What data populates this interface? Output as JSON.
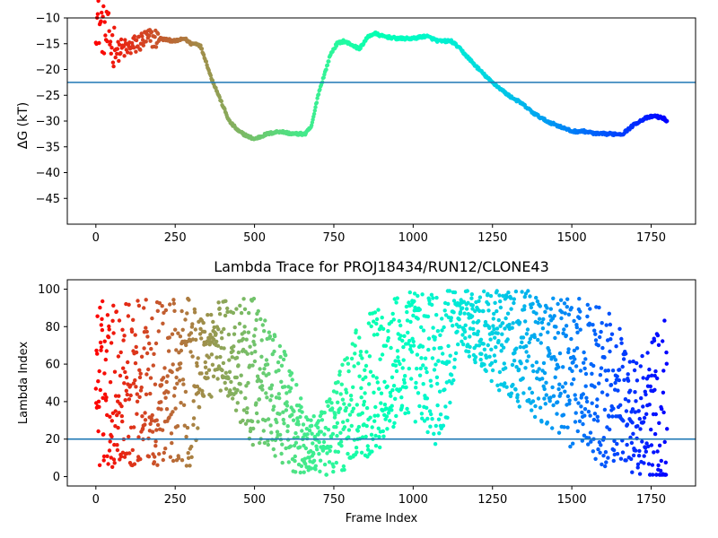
{
  "chart_data": [
    {
      "type": "scatter",
      "title": "",
      "xlabel": "",
      "ylabel": "ΔG (kT)",
      "xlim": [
        -90,
        1890
      ],
      "ylim": [
        -50,
        -10
      ],
      "xticks": [
        0,
        250,
        500,
        750,
        1000,
        1250,
        1500,
        1750
      ],
      "xtick_labels": [
        "0",
        "250",
        "500",
        "750",
        "1000",
        "1250",
        "1500",
        "1750"
      ],
      "yticks": [
        -45,
        -40,
        -35,
        -30,
        -25,
        -20,
        -15,
        -10
      ],
      "ytick_labels": [
        "−45",
        "−40",
        "−35",
        "−30",
        "−25",
        "−20",
        "−15",
        "−10"
      ],
      "hline": -22.5,
      "hline_color": "#1f77b4",
      "colormap": "rainbow (red at frame 0 to violet at frame 1800)",
      "frames": [
        0,
        1800
      ],
      "series_path": {
        "x": [
          0,
          10,
          20,
          30,
          40,
          50,
          60,
          70,
          80,
          100,
          130,
          160,
          200,
          250,
          280,
          300,
          320,
          330,
          345,
          360,
          380,
          400,
          420,
          450,
          480,
          500,
          540,
          580,
          620,
          660,
          680,
          700,
          720,
          740,
          760,
          780,
          800,
          830,
          860,
          880,
          900,
          950,
          1000,
          1040,
          1080,
          1120,
          1140,
          1170,
          1200,
          1240,
          1270,
          1300,
          1340,
          1380,
          1420,
          1460,
          1500,
          1540,
          1580,
          1620,
          1660,
          1680,
          1700,
          1730,
          1760,
          1790,
          1800
        ],
        "y": [
          -10,
          -11,
          -12,
          -13,
          -14,
          -15,
          -15.5,
          -16.5,
          -16,
          -16,
          -15,
          -14,
          -14,
          -14.5,
          -14,
          -15,
          -15,
          -15.5,
          -18,
          -21,
          -24,
          -27,
          -30,
          -32,
          -33,
          -33.5,
          -32.5,
          -32,
          -32.5,
          -32.5,
          -31,
          -25,
          -21,
          -17,
          -15,
          -14.5,
          -15,
          -16,
          -13.5,
          -13,
          -13.5,
          -14,
          -14,
          -13.5,
          -14.5,
          -14.5,
          -15.5,
          -17.5,
          -19.5,
          -22,
          -23.5,
          -25,
          -26.5,
          -28.5,
          -30,
          -31,
          -32,
          -32,
          -32.5,
          -32.5,
          -32.5,
          -31.5,
          -30.5,
          -29.5,
          -29,
          -29.5,
          -30
        ]
      }
    },
    {
      "type": "scatter",
      "title": "Lambda Trace for PROJ18434/RUN12/CLONE43",
      "xlabel": "Frame Index",
      "ylabel": "Lambda Index",
      "xlim": [
        -90,
        1890
      ],
      "ylim": [
        -5,
        105
      ],
      "xticks": [
        0,
        250,
        500,
        750,
        1000,
        1250,
        1500,
        1750
      ],
      "xtick_labels": [
        "0",
        "250",
        "500",
        "750",
        "1000",
        "1250",
        "1500",
        "1750"
      ],
      "yticks": [
        0,
        20,
        40,
        60,
        80,
        100
      ],
      "ytick_labels": [
        "0",
        "20",
        "40",
        "60",
        "80",
        "100"
      ],
      "hline": 20,
      "hline_color": "#1f77b4",
      "colormap": "rainbow (red at frame 0 to violet at frame 1800)",
      "frames": [
        0,
        1800
      ],
      "density_profile": {
        "x": [
          0,
          100,
          200,
          300,
          340,
          400,
          500,
          600,
          650,
          700,
          750,
          800,
          900,
          1000,
          1100,
          1140,
          1200,
          1300,
          1400,
          1500,
          1600,
          1650,
          1700,
          1800
        ],
        "center": [
          50,
          50,
          50,
          50,
          65,
          70,
          55,
          35,
          20,
          15,
          25,
          40,
          55,
          65,
          55,
          85,
          80,
          70,
          65,
          55,
          50,
          45,
          30,
          40
        ],
        "spread": [
          45,
          45,
          45,
          45,
          25,
          25,
          40,
          30,
          20,
          15,
          25,
          35,
          40,
          35,
          45,
          15,
          20,
          30,
          35,
          40,
          45,
          35,
          30,
          50
        ]
      }
    }
  ]
}
